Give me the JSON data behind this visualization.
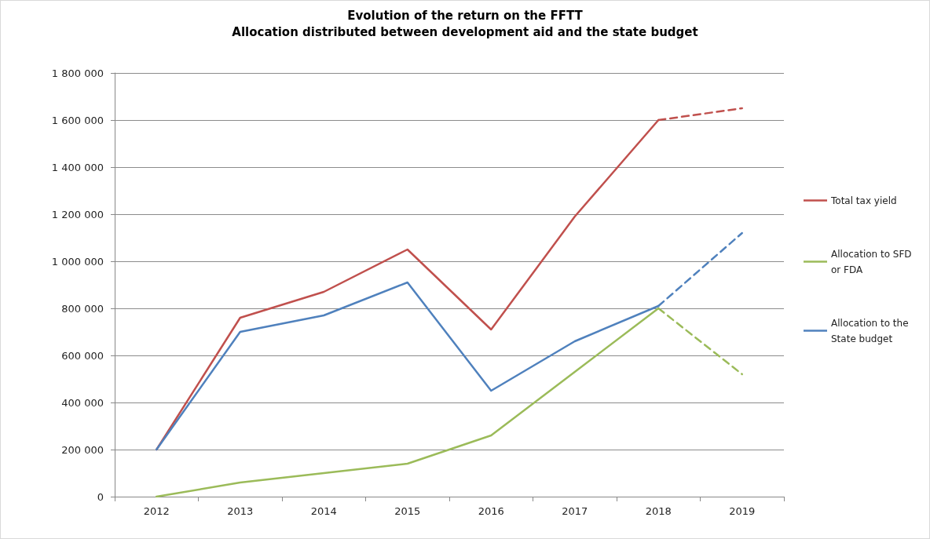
{
  "chart_data": {
    "type": "line",
    "title": "Evolution of the return on the FFTT",
    "subtitle": "Allocation distributed between development aid and the state budget",
    "categories": [
      "2012",
      "2013",
      "2014",
      "2015",
      "2016",
      "2017",
      "2018",
      "2019"
    ],
    "series": [
      {
        "name": "Total tax yield",
        "color": "#c0504d",
        "line_style": "solid",
        "values": [
          200000,
          760000,
          870000,
          1050000,
          710000,
          1190000,
          1600000,
          null
        ]
      },
      {
        "name": "Allocation to SFD or FDA",
        "color": "#9bbb59",
        "line_style": "solid",
        "values": [
          0,
          60000,
          100000,
          140000,
          260000,
          530000,
          800000,
          null
        ]
      },
      {
        "name": "Allocation to the State budget",
        "color": "#4f81bd",
        "line_style": "solid",
        "values": [
          200000,
          700000,
          770000,
          910000,
          450000,
          660000,
          810000,
          null
        ]
      },
      {
        "color": "#c0504d",
        "line_style": "dashed",
        "values": [
          null,
          null,
          null,
          null,
          null,
          null,
          1600000,
          1650000
        ]
      },
      {
        "color": "#9bbb59",
        "line_style": "dashed",
        "values": [
          null,
          null,
          null,
          null,
          null,
          null,
          800000,
          520000
        ]
      },
      {
        "color": "#4f81bd",
        "line_style": "dashed",
        "values": [
          null,
          null,
          null,
          null,
          null,
          null,
          810000,
          1120000
        ]
      }
    ],
    "ylim": [
      0,
      1800000
    ],
    "yticks": [
      {
        "value": 0,
        "label": "0"
      },
      {
        "value": 200000,
        "label": "200 000"
      },
      {
        "value": 400000,
        "label": "400 000"
      },
      {
        "value": 600000,
        "label": "600 000"
      },
      {
        "value": 800000,
        "label": "800 000"
      },
      {
        "value": 1000000,
        "label": "1 000 000"
      },
      {
        "value": 1200000,
        "label": "1 200 000"
      },
      {
        "value": 1400000,
        "label": "1 400 000"
      },
      {
        "value": 1600000,
        "label": "1 600 000"
      },
      {
        "value": 1800000,
        "label": "1 800 000"
      }
    ],
    "grid": "y",
    "legend": "right",
    "marker": "none"
  }
}
